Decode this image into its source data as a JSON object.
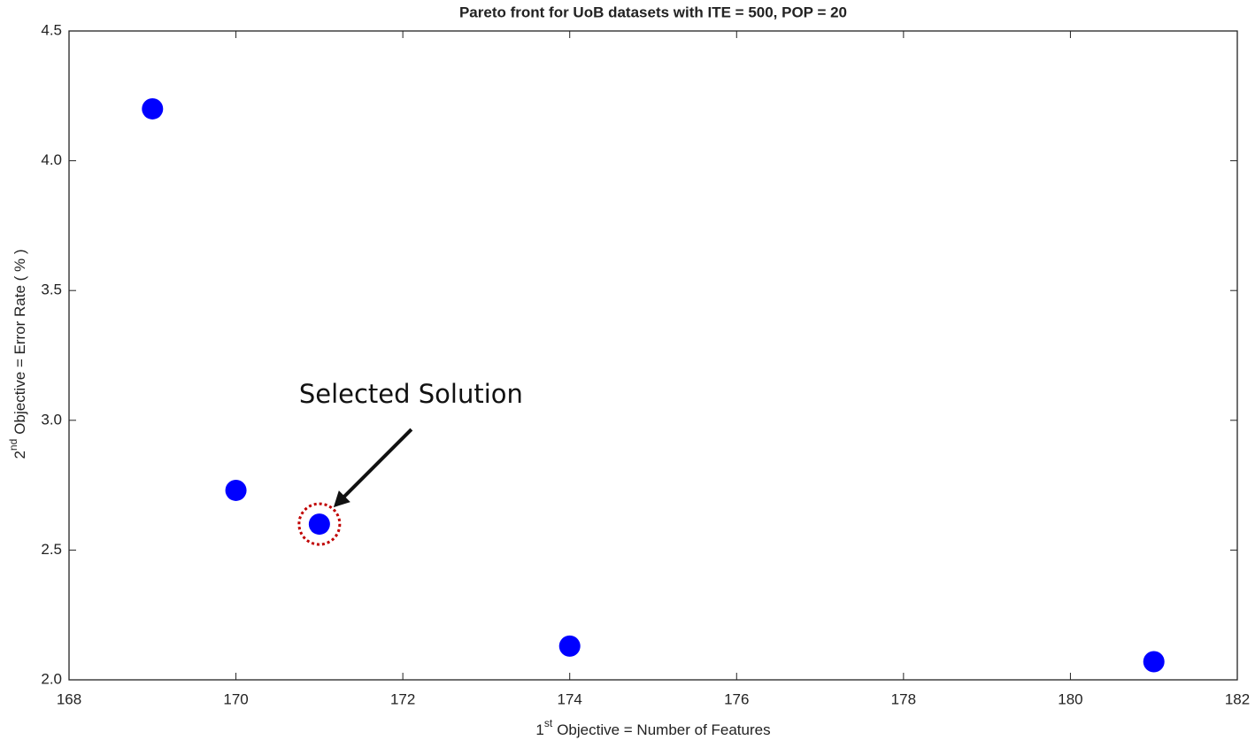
{
  "chart_data": {
    "type": "scatter",
    "title": "Pareto front for UoB datasets with ITE = 500, POP = 20",
    "xlabel": [
      "1",
      "st",
      "Objective = Number of Features"
    ],
    "ylabel": [
      "2",
      "nd",
      "Objective = Error Rate ( % )"
    ],
    "x": [
      169,
      170,
      171,
      174,
      181
    ],
    "values": [
      4.2,
      2.73,
      2.6,
      2.13,
      2.07
    ],
    "color": "#0000ff",
    "xlim": [
      168,
      182
    ],
    "xticks": [
      168,
      170,
      172,
      174,
      176,
      178,
      180,
      182
    ],
    "ylim": [
      2,
      4.5
    ],
    "yticks": [
      {
        "value": 2,
        "label": "2.0"
      },
      2.5,
      {
        "value": 3,
        "label": "3.0"
      },
      3.5,
      {
        "value": 4,
        "label": "4.0"
      },
      4.5
    ],
    "annotation": {
      "text": "Selected Solution",
      "point": 2,
      "color": "#c00000"
    }
  }
}
